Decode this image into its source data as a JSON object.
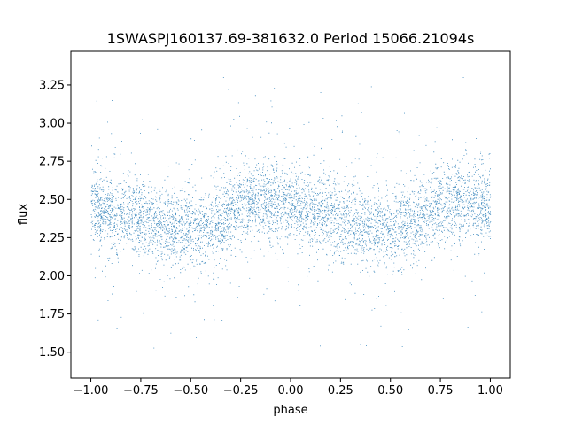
{
  "chart_data": {
    "type": "scatter",
    "title": "1SWASPJ160137.69-381632.0 Period 15066.21094s",
    "xlabel": "phase",
    "ylabel": "flux",
    "xlim": [
      -1.1,
      1.1
    ],
    "ylim": [
      1.33,
      3.47
    ],
    "x_ticks": [
      -1.0,
      -0.75,
      -0.5,
      -0.25,
      0.0,
      0.25,
      0.5,
      0.75,
      1.0
    ],
    "x_tick_labels": [
      "−1.00",
      "−0.75",
      "−0.50",
      "−0.25",
      "0.00",
      "0.25",
      "0.50",
      "0.75",
      "1.00"
    ],
    "y_ticks": [
      1.5,
      1.75,
      2.0,
      2.25,
      2.5,
      2.75,
      3.0,
      3.25
    ],
    "y_tick_labels": [
      "1.50",
      "1.75",
      "2.00",
      "2.25",
      "2.50",
      "2.75",
      "3.00",
      "3.25"
    ],
    "grid": false,
    "series": [
      {
        "color": "#1f77b4",
        "point_count_approx": 12000,
        "phase_range": [
          -1.0,
          1.0
        ],
        "trend_phase": [
          -1.0,
          -0.9,
          -0.8,
          -0.7,
          -0.6,
          -0.5,
          -0.4,
          -0.3,
          -0.2,
          -0.1,
          0.0,
          0.1,
          0.2,
          0.3,
          0.4,
          0.5,
          0.6,
          0.7,
          0.8,
          0.9,
          1.0
        ],
        "trend_flux": [
          2.45,
          2.42,
          2.4,
          2.35,
          2.31,
          2.3,
          2.33,
          2.42,
          2.5,
          2.49,
          2.46,
          2.42,
          2.4,
          2.35,
          2.31,
          2.3,
          2.33,
          2.42,
          2.5,
          2.49,
          2.46
        ],
        "scatter_sigma": 0.12,
        "outlier_flux_range": [
          1.42,
          3.38
        ]
      }
    ]
  }
}
